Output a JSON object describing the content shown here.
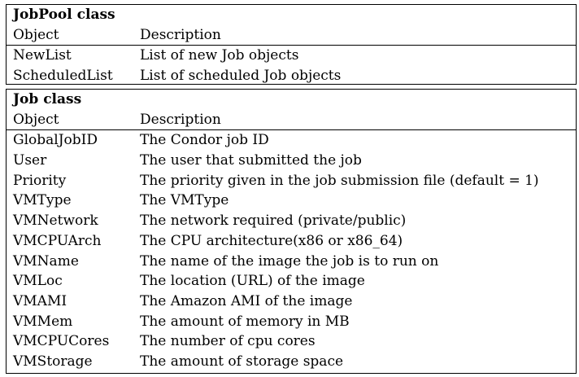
{
  "jobpool": {
    "title": "JobPool class",
    "header": {
      "object": "Object",
      "description": "Description"
    },
    "rows": [
      {
        "object": "NewList",
        "description": "List of new Job objects"
      },
      {
        "object": "ScheduledList",
        "description": "List of scheduled Job objects"
      }
    ]
  },
  "job": {
    "title": "Job class",
    "header": {
      "object": "Object",
      "description": "Description"
    },
    "rows": [
      {
        "object": "GlobalJobID",
        "description": "The Condor job ID"
      },
      {
        "object": "User",
        "description": "The user that submitted the job"
      },
      {
        "object": "Priority",
        "description": "The priority given in the job submission file (default = 1)"
      },
      {
        "object": "VMType",
        "description": "The VMType"
      },
      {
        "object": "VMNetwork",
        "description": "The network required (private/public)"
      },
      {
        "object": "VMCPUArch",
        "description": "The CPU architecture(x86 or x86_64)"
      },
      {
        "object": "VMName",
        "description": "The name of the image the job is to run on"
      },
      {
        "object": "VMLoc",
        "description": "The location (URL) of the image"
      },
      {
        "object": "VMAMI",
        "description": "The Amazon AMI of the image"
      },
      {
        "object": "VMMem",
        "description": "The amount of memory in MB"
      },
      {
        "object": "VMCPUCores",
        "description": "The number of cpu cores"
      },
      {
        "object": "VMStorage",
        "description": "The amount of storage space"
      }
    ]
  }
}
